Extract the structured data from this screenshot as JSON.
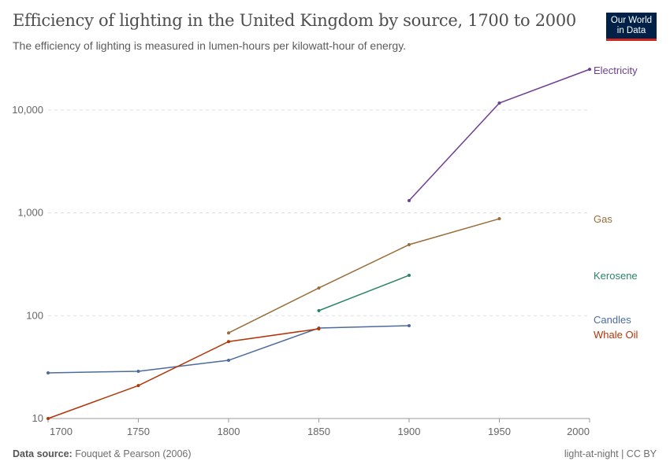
{
  "header": {
    "title": "Efficiency of lighting in the United Kingdom by source, 1700 to 2000",
    "subtitle": "The efficiency of lighting is measured in lumen-hours per kilowatt-hour of energy.",
    "logo_line1": "Our World",
    "logo_line2": "in Data"
  },
  "footer": {
    "source_label": "Data source:",
    "source": "Fouquet & Pearson (2006)",
    "license": "light-at-night | CC BY"
  },
  "chart_data": {
    "type": "line",
    "title": "Efficiency of lighting in the United Kingdom by source, 1700 to 2000",
    "xlabel": "",
    "ylabel": "",
    "xlim": [
      1700,
      2000
    ],
    "ylim": [
      10,
      30000
    ],
    "yscale": "log",
    "grid": "horizontal-dashed",
    "legend": "right-labels",
    "xticks": [
      "1700",
      "1750",
      "1800",
      "1850",
      "1900",
      "1950",
      "2000"
    ],
    "yticks": [
      {
        "v": 10,
        "label": "10"
      },
      {
        "v": 100,
        "label": "100"
      },
      {
        "v": 1000,
        "label": "1,000"
      },
      {
        "v": 10000,
        "label": "10,000"
      }
    ],
    "series": [
      {
        "name": "Electricity",
        "color": "#6d3e91",
        "x": [
          1900,
          1950,
          2000
        ],
        "y": [
          1316,
          11700,
          24900
        ]
      },
      {
        "name": "Gas",
        "color": "#996d39",
        "x": [
          1800,
          1850,
          1900,
          1950
        ],
        "y": [
          68,
          186,
          491,
          877
        ]
      },
      {
        "name": "Kerosene",
        "color": "#2c8465",
        "x": [
          1850,
          1900
        ],
        "y": [
          112,
          247
        ]
      },
      {
        "name": "Candles",
        "color": "#4c6a9c",
        "x": [
          1700,
          1750,
          1800,
          1850,
          1900
        ],
        "y": [
          27.8,
          28.8,
          36.8,
          75.8,
          80
        ]
      },
      {
        "name": "Whale Oil",
        "color": "#b13507",
        "x": [
          1700,
          1750,
          1800,
          1850
        ],
        "y": [
          10,
          20.9,
          56,
          74.5
        ]
      }
    ]
  }
}
